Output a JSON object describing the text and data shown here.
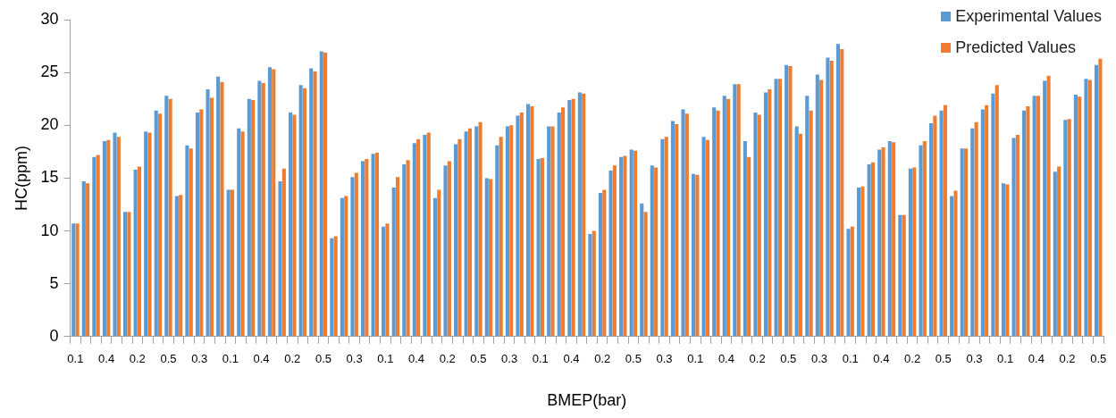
{
  "chart_data": {
    "type": "bar",
    "xlabel": "BMEP(bar)",
    "ylabel": "HC(ppm)",
    "categories": [
      "0.1",
      null,
      null,
      "0.4",
      null,
      null,
      "0.2",
      null,
      null,
      "0.5",
      null,
      null,
      "0.3",
      null,
      null,
      "0.1",
      null,
      null,
      "0.4",
      null,
      null,
      "0.2",
      null,
      null,
      "0.5",
      null,
      null,
      "0.3",
      null,
      null,
      "0.1",
      null,
      null,
      "0.4",
      null,
      null,
      "0.2",
      null,
      null,
      "0.5",
      null,
      null,
      "0.3",
      null,
      null,
      "0.1",
      null,
      null,
      "0.4",
      null,
      null,
      "0.2",
      null,
      null,
      "0.5",
      null,
      null,
      "0.3",
      null,
      null,
      "0.1",
      null,
      null,
      "0.4",
      null,
      null,
      "0.2",
      null,
      null,
      "0.5",
      null,
      null,
      "0.3",
      null,
      null,
      "0.1",
      null,
      null,
      "0.4",
      null,
      null,
      "0.2",
      null,
      null,
      "0.5",
      null,
      null,
      "0.3",
      null,
      null,
      "0.1",
      null,
      null,
      "0.4",
      null,
      null,
      "0.2",
      null,
      null,
      "0.5"
    ],
    "series": [
      {
        "name": "Experimental Values",
        "color": "#5b9bd5",
        "values": [
          10.7,
          14.7,
          17.0,
          18.5,
          19.3,
          11.8,
          15.8,
          19.4,
          21.4,
          22.8,
          13.3,
          18.1,
          21.2,
          23.4,
          24.6,
          13.9,
          19.7,
          22.5,
          24.2,
          25.5,
          14.7,
          21.2,
          23.8,
          25.4,
          27.0,
          9.3,
          13.1,
          15.1,
          16.6,
          17.3,
          10.4,
          14.1,
          16.3,
          18.3,
          19.1,
          13.1,
          16.2,
          18.2,
          19.4,
          19.9,
          15.0,
          18.1,
          19.9,
          20.9,
          22.0,
          16.8,
          19.9,
          21.2,
          22.4,
          23.1,
          9.7,
          13.6,
          15.7,
          17.0,
          17.7,
          12.6,
          16.2,
          18.7,
          20.4,
          21.5,
          15.4,
          18.9,
          21.7,
          22.8,
          23.9,
          18.5,
          21.2,
          23.1,
          24.4,
          25.7,
          19.9,
          22.8,
          24.8,
          26.4,
          27.7,
          10.2,
          14.1,
          16.3,
          17.7,
          18.5,
          11.5,
          15.9,
          18.1,
          20.2,
          21.4,
          13.3,
          17.8,
          19.7,
          21.5,
          23.0,
          14.5,
          18.8,
          21.4,
          22.8,
          24.2,
          15.6,
          20.5,
          22.9,
          24.4,
          25.7
        ]
      },
      {
        "name": "Predicted Values",
        "color": "#ed7d31",
        "values": [
          10.7,
          14.5,
          17.2,
          18.6,
          18.9,
          11.8,
          16.1,
          19.3,
          21.1,
          22.5,
          13.4,
          17.8,
          21.5,
          22.6,
          24.1,
          13.9,
          19.4,
          22.4,
          24.0,
          25.3,
          15.9,
          21.0,
          23.5,
          25.1,
          26.9,
          9.5,
          13.3,
          15.5,
          16.8,
          17.4,
          10.7,
          15.1,
          16.7,
          18.7,
          19.3,
          13.9,
          16.6,
          18.7,
          19.7,
          20.3,
          14.9,
          18.9,
          20.0,
          21.2,
          21.8,
          16.9,
          19.9,
          21.7,
          22.5,
          23.0,
          10.0,
          13.9,
          16.2,
          17.1,
          17.6,
          11.8,
          16.0,
          18.9,
          20.1,
          21.1,
          15.3,
          18.6,
          21.4,
          22.5,
          23.9,
          17.0,
          21.0,
          23.4,
          24.4,
          25.6,
          19.2,
          21.4,
          24.3,
          26.1,
          27.2,
          10.4,
          14.2,
          16.5,
          17.9,
          18.4,
          11.5,
          16.0,
          18.5,
          20.9,
          21.9,
          13.8,
          17.8,
          20.3,
          21.9,
          23.8,
          14.4,
          19.1,
          21.8,
          22.8,
          24.7,
          16.1,
          20.6,
          22.7,
          24.3,
          26.3
        ]
      }
    ],
    "ylim": [
      0,
      30
    ],
    "yticks": [
      0,
      5,
      10,
      15,
      20,
      25,
      30
    ],
    "legend": "top right"
  }
}
